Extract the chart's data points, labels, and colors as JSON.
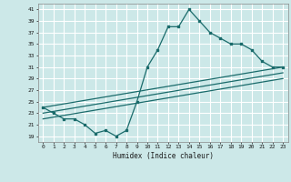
{
  "title": "",
  "xlabel": "Humidex (Indice chaleur)",
  "bg_color": "#cce8e8",
  "grid_color": "#ffffff",
  "line_color": "#1a6b6b",
  "xlim": [
    -0.5,
    23.5
  ],
  "ylim": [
    18,
    42
  ],
  "xticks": [
    0,
    1,
    2,
    3,
    4,
    5,
    6,
    7,
    8,
    9,
    10,
    11,
    12,
    13,
    14,
    15,
    16,
    17,
    18,
    19,
    20,
    21,
    22,
    23
  ],
  "yticks": [
    19,
    21,
    23,
    25,
    27,
    29,
    31,
    33,
    35,
    37,
    39,
    41
  ],
  "line1_x": [
    0,
    1,
    2,
    3,
    4,
    5,
    6,
    7,
    8,
    9,
    10,
    11,
    12,
    13,
    14,
    15,
    16,
    17,
    18,
    19,
    20,
    21,
    22,
    23
  ],
  "line1_y": [
    24,
    23,
    22,
    22,
    21,
    19.5,
    20,
    19,
    20,
    25,
    31,
    34,
    38,
    38,
    41,
    39,
    37,
    36,
    35,
    35,
    34,
    32,
    31,
    31
  ],
  "line2_x": [
    0,
    23
  ],
  "line2_y": [
    24,
    31
  ],
  "line3_x": [
    0,
    23
  ],
  "line3_y": [
    23,
    30
  ],
  "line4_x": [
    0,
    23
  ],
  "line4_y": [
    22,
    29
  ]
}
